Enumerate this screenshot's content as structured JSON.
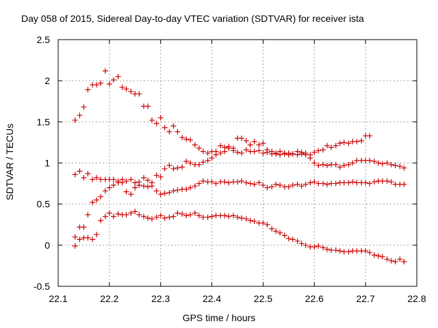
{
  "chart_data": {
    "type": "scatter",
    "title": "Day 058 of 2015, Sidereal Day-to-day VTEC variation (SDTVAR) for receiver ista",
    "xlabel": "GPS time / hours",
    "ylabel": "SDTVAR / TECUs",
    "xlim": [
      22.1,
      22.8
    ],
    "ylim": [
      -0.5,
      2.5
    ],
    "xticks": [
      "22.1",
      "22.2",
      "22.3",
      "22.4",
      "22.5",
      "22.6",
      "22.7",
      "22.8"
    ],
    "yticks": [
      "-0.5",
      "0",
      "0.5",
      "1",
      "1.5",
      "2",
      "2.5"
    ],
    "grid": true,
    "marker": "+",
    "color": "#cc0000",
    "series": [
      {
        "name": "series 1",
        "x": [
          22.133,
          22.142,
          22.15,
          22.158,
          22.167,
          22.175,
          22.183,
          22.192,
          22.2,
          22.208,
          22.217,
          22.225,
          22.233,
          22.242,
          22.25,
          22.258,
          22.267,
          22.275,
          22.283,
          22.292,
          22.3,
          22.308,
          22.317,
          22.325,
          22.333,
          22.342,
          22.35,
          22.358,
          22.367,
          22.375,
          22.383,
          22.392,
          22.4,
          22.408,
          22.417,
          22.425,
          22.433,
          22.442,
          22.45,
          22.458,
          22.467,
          22.475,
          22.483,
          22.492,
          22.5,
          22.508,
          22.517,
          22.525,
          22.533,
          22.542,
          22.55,
          22.558,
          22.567,
          22.575,
          22.583,
          22.592,
          22.6,
          22.608,
          22.617,
          22.625,
          22.633,
          22.642,
          22.65,
          22.658,
          22.667,
          22.675,
          22.683,
          22.692,
          22.7,
          22.708
        ],
        "y": [
          1.52,
          1.58,
          1.68,
          1.89,
          1.95,
          1.95,
          1.97,
          2.12,
          1.96,
          2.01,
          2.05,
          1.92,
          1.9,
          1.87,
          1.84,
          1.84,
          1.69,
          1.69,
          1.52,
          1.48,
          1.55,
          1.43,
          1.38,
          1.45,
          1.38,
          1.31,
          1.29,
          1.28,
          1.22,
          1.18,
          1.14,
          1.12,
          1.14,
          1.14,
          1.21,
          1.19,
          1.2,
          1.18,
          1.3,
          1.3,
          1.27,
          1.22,
          1.26,
          1.22,
          1.24,
          1.16,
          1.14,
          1.12,
          1.14,
          1.12,
          1.1,
          1.11,
          1.14,
          1.13,
          1.12,
          1.1,
          1.13,
          1.15,
          1.16,
          1.21,
          1.19,
          1.21,
          1.24,
          1.25,
          1.24,
          1.26,
          1.26,
          1.27,
          1.33,
          1.33
        ]
      },
      {
        "name": "series 2",
        "x": [
          22.133,
          22.142,
          22.15,
          22.158,
          22.167,
          22.175,
          22.183,
          22.192,
          22.2,
          22.208,
          22.217,
          22.225,
          22.233,
          22.242,
          22.25,
          22.258,
          22.267,
          22.275,
          22.283,
          22.292,
          22.3,
          22.308,
          22.317,
          22.325,
          22.333,
          22.342,
          22.35,
          22.358,
          22.367,
          22.375,
          22.383,
          22.392,
          22.4,
          22.408,
          22.417,
          22.425,
          22.433,
          22.442,
          22.45,
          22.458,
          22.467,
          22.475,
          22.483,
          22.492,
          22.5,
          22.508,
          22.517,
          22.525,
          22.533,
          22.542,
          22.55,
          22.558,
          22.567,
          22.575,
          22.583,
          22.592,
          22.6,
          22.608,
          22.617,
          22.625,
          22.633,
          22.642,
          22.65,
          22.658,
          22.667,
          22.675,
          22.683,
          22.692,
          22.7,
          22.708,
          22.717,
          22.725,
          22.733,
          22.742,
          22.75,
          22.758,
          22.767,
          22.775
        ],
        "y": [
          0.86,
          0.9,
          0.82,
          0.87,
          0.8,
          0.82,
          0.8,
          0.8,
          0.8,
          0.8,
          0.78,
          0.76,
          0.78,
          0.8,
          0.76,
          0.77,
          0.82,
          0.79,
          0.76,
          0.85,
          0.83,
          0.93,
          0.97,
          0.93,
          0.94,
          0.95,
          1.02,
          1.0,
          0.98,
          0.98,
          1.01,
          1.03,
          1.06,
          1.1,
          1.12,
          1.14,
          1.18,
          1.15,
          1.13,
          1.12,
          1.16,
          1.14,
          1.14,
          1.15,
          1.12,
          1.13,
          1.11,
          1.11,
          1.1,
          1.11,
          1.12,
          1.11,
          1.1,
          1.11,
          1.1,
          1.06,
          1.0,
          0.97,
          0.98,
          0.97,
          0.98,
          0.98,
          0.95,
          0.97,
          0.98,
          1.0,
          1.03,
          1.03,
          1.03,
          1.03,
          1.02,
          1.0,
          0.99,
          1.0,
          0.98,
          0.97,
          0.96,
          0.94
        ]
      },
      {
        "name": "series 3",
        "x": [
          22.133,
          22.142,
          22.15,
          22.158,
          22.167,
          22.175,
          22.183,
          22.192,
          22.2,
          22.208,
          22.217,
          22.225,
          22.233,
          22.242,
          22.25,
          22.258,
          22.267,
          22.275,
          22.283,
          22.292,
          22.3,
          22.308,
          22.317,
          22.325,
          22.333,
          22.342,
          22.35,
          22.358,
          22.367,
          22.375,
          22.383,
          22.392,
          22.4,
          22.408,
          22.417,
          22.425,
          22.433,
          22.442,
          22.45,
          22.458,
          22.467,
          22.475,
          22.483,
          22.492,
          22.5,
          22.508,
          22.517,
          22.525,
          22.533,
          22.542,
          22.55,
          22.558,
          22.567,
          22.575,
          22.583,
          22.592,
          22.6,
          22.608,
          22.617,
          22.625,
          22.633,
          22.642,
          22.65,
          22.658,
          22.667,
          22.675,
          22.683,
          22.692,
          22.7,
          22.708,
          22.717,
          22.725,
          22.733,
          22.742,
          22.75,
          22.758,
          22.767,
          22.775
        ],
        "y": [
          0.1,
          0.22,
          0.22,
          0.37,
          0.52,
          0.55,
          0.59,
          0.66,
          0.7,
          0.73,
          0.76,
          0.8,
          0.65,
          0.62,
          0.7,
          0.73,
          0.72,
          0.71,
          0.72,
          0.66,
          0.62,
          0.63,
          0.64,
          0.66,
          0.67,
          0.68,
          0.68,
          0.7,
          0.72,
          0.75,
          0.78,
          0.77,
          0.77,
          0.75,
          0.77,
          0.77,
          0.76,
          0.77,
          0.77,
          0.78,
          0.76,
          0.75,
          0.74,
          0.76,
          0.73,
          0.7,
          0.71,
          0.74,
          0.73,
          0.71,
          0.71,
          0.73,
          0.74,
          0.72,
          0.74,
          0.76,
          0.77,
          0.75,
          0.75,
          0.74,
          0.75,
          0.75,
          0.76,
          0.76,
          0.76,
          0.77,
          0.76,
          0.76,
          0.76,
          0.75,
          0.77,
          0.78,
          0.78,
          0.78,
          0.77,
          0.74,
          0.74,
          0.74
        ]
      },
      {
        "name": "series 4",
        "x": [
          22.133,
          22.142,
          22.15,
          22.158,
          22.167,
          22.175,
          22.183,
          22.192,
          22.2,
          22.208,
          22.217,
          22.225,
          22.233,
          22.242,
          22.25,
          22.258,
          22.267,
          22.275,
          22.283,
          22.292,
          22.3,
          22.308,
          22.317,
          22.325,
          22.333,
          22.342,
          22.35,
          22.358,
          22.367,
          22.375,
          22.383,
          22.392,
          22.4,
          22.408,
          22.417,
          22.425,
          22.433,
          22.442,
          22.45,
          22.458,
          22.467,
          22.475,
          22.483,
          22.492,
          22.5,
          22.508,
          22.517,
          22.525,
          22.533,
          22.542,
          22.55,
          22.558,
          22.567,
          22.575,
          22.583,
          22.592,
          22.6,
          22.608,
          22.617,
          22.625,
          22.633,
          22.642,
          22.65,
          22.658,
          22.667,
          22.675,
          22.683,
          22.692,
          22.7,
          22.708,
          22.717,
          22.725,
          22.733,
          22.742,
          22.75,
          22.758,
          22.767,
          22.775
        ],
        "y": [
          -0.01,
          0.07,
          0.09,
          0.09,
          0.07,
          0.13,
          0.3,
          0.35,
          0.39,
          0.35,
          0.38,
          0.37,
          0.37,
          0.39,
          0.41,
          0.37,
          0.35,
          0.33,
          0.32,
          0.34,
          0.36,
          0.33,
          0.34,
          0.35,
          0.39,
          0.38,
          0.36,
          0.37,
          0.39,
          0.36,
          0.34,
          0.34,
          0.35,
          0.36,
          0.36,
          0.36,
          0.35,
          0.36,
          0.34,
          0.33,
          0.32,
          0.3,
          0.29,
          0.27,
          0.27,
          0.25,
          0.2,
          0.17,
          0.15,
          0.12,
          0.08,
          0.07,
          0.05,
          0.02,
          0.0,
          -0.02,
          -0.02,
          -0.01,
          -0.03,
          -0.05,
          -0.06,
          -0.06,
          -0.07,
          -0.08,
          -0.08,
          -0.07,
          -0.07,
          -0.07,
          -0.07,
          -0.09,
          -0.12,
          -0.13,
          -0.14,
          -0.17,
          -0.19,
          -0.2,
          -0.17,
          -0.2
        ]
      }
    ]
  }
}
